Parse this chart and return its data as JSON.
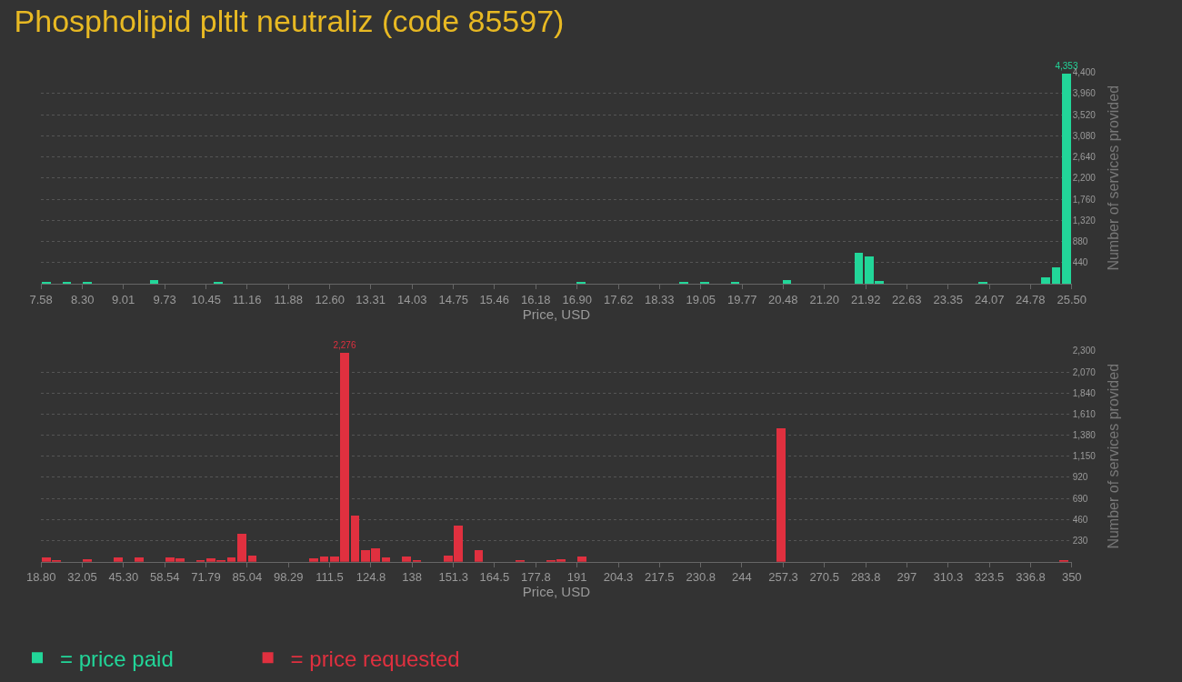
{
  "chart_data": [
    {
      "type": "bar",
      "title": "Phospholipid pltlt neutraliz (code 85597)",
      "xlabel": "Price, USD",
      "ylabel": "Number of services provided",
      "legend": "bottom left",
      "grid": "y",
      "xlim": [
        7.58,
        25.5
      ],
      "xticks": [
        7.58,
        {
          "value": 8.3,
          "label": "8.30"
        },
        9.01,
        9.73,
        10.45,
        11.16,
        11.88,
        {
          "value": 12.6,
          "label": "12.60"
        },
        13.31,
        14.03,
        14.75,
        15.46,
        16.18,
        {
          "value": 16.9,
          "label": "16.90"
        },
        17.62,
        18.33,
        19.05,
        19.77,
        20.48,
        {
          "value": 21.2,
          "label": "21.20"
        },
        21.92,
        22.63,
        23.35,
        24.07,
        24.78,
        {
          "value": 25.5,
          "label": "25.50"
        }
      ],
      "ylim": [
        0,
        4400
      ],
      "yticks": [
        440,
        880,
        {
          "value": 1320,
          "label": "1,320"
        },
        {
          "value": 1760,
          "label": "1,760"
        },
        {
          "value": 2200,
          "label": "2,200"
        },
        {
          "value": 2640,
          "label": "2,640"
        },
        {
          "value": 3080,
          "label": "3,080"
        },
        {
          "value": 3520,
          "label": "3,520"
        },
        {
          "value": 3960,
          "label": "3,960"
        },
        {
          "value": 4400,
          "label": "4,400"
        }
      ],
      "series": [
        {
          "name": "= price paid",
          "color": "#22d699",
          "x": [
            7.67,
            8.03,
            8.39,
            9.55,
            10.66,
            16.97,
            18.76,
            19.12,
            19.65,
            20.55,
            21.8,
            21.98,
            22.16,
            23.96,
            25.05,
            25.23,
            25.41
          ],
          "values": [
            30,
            30,
            20,
            60,
            20,
            30,
            30,
            20,
            20,
            60,
            640,
            550,
            50,
            20,
            120,
            330,
            4353
          ],
          "value_labels": [
            null,
            null,
            null,
            null,
            null,
            null,
            null,
            null,
            null,
            null,
            null,
            null,
            null,
            null,
            null,
            null,
            "4,353"
          ]
        }
      ]
    },
    {
      "type": "bar",
      "xlabel": "Price, USD",
      "ylabel": "Number of services provided",
      "legend": "bottom left",
      "grid": "y",
      "xlim": [
        18.8,
        350
      ],
      "xticks": [
        {
          "value": 18.8,
          "label": "18.80"
        },
        32.05,
        {
          "value": 45.3,
          "label": "45.30"
        },
        58.54,
        71.79,
        85.04,
        98.29,
        111.5,
        124.8,
        138,
        151.3,
        164.5,
        177.8,
        191,
        204.3,
        217.5,
        230.8,
        244,
        257.3,
        270.5,
        283.8,
        297,
        310.3,
        323.5,
        336.8,
        350
      ],
      "ylim": [
        0,
        2300
      ],
      "yticks": [
        230,
        460,
        690,
        920,
        {
          "value": 1150,
          "label": "1,150"
        },
        {
          "value": 1380,
          "label": "1,380"
        },
        {
          "value": 1610,
          "label": "1,610"
        },
        {
          "value": 1840,
          "label": "1,840"
        },
        {
          "value": 2070,
          "label": "2,070"
        },
        {
          "value": 2300,
          "label": "2,300"
        }
      ],
      "series": [
        {
          "name": "= price requested",
          "color": "#e0303f",
          "x": [
            20.5,
            23.8,
            33.7,
            43.6,
            50.3,
            60.2,
            63.5,
            70.1,
            73.4,
            76.7,
            80.0,
            83.3,
            86.7,
            106.5,
            109.8,
            113.1,
            116.4,
            119.7,
            123.1,
            126.4,
            129.7,
            136.3,
            139.6,
            149.6,
            152.9,
            159.5,
            172.8,
            182.7,
            186.0,
            192.6,
            256.6,
            347.5
          ],
          "values": [
            50,
            20,
            30,
            50,
            50,
            50,
            40,
            20,
            40,
            20,
            50,
            310,
            70,
            40,
            60,
            60,
            2276,
            500,
            130,
            150,
            50,
            60,
            20,
            70,
            400,
            130,
            20,
            20,
            30,
            60,
            1460,
            20
          ],
          "value_labels": [
            null,
            null,
            null,
            null,
            null,
            null,
            null,
            null,
            null,
            null,
            null,
            null,
            null,
            null,
            null,
            null,
            "2,276",
            null,
            null,
            null,
            null,
            null,
            null,
            null,
            null,
            null,
            null,
            null,
            null,
            null,
            null,
            null
          ]
        }
      ]
    }
  ]
}
